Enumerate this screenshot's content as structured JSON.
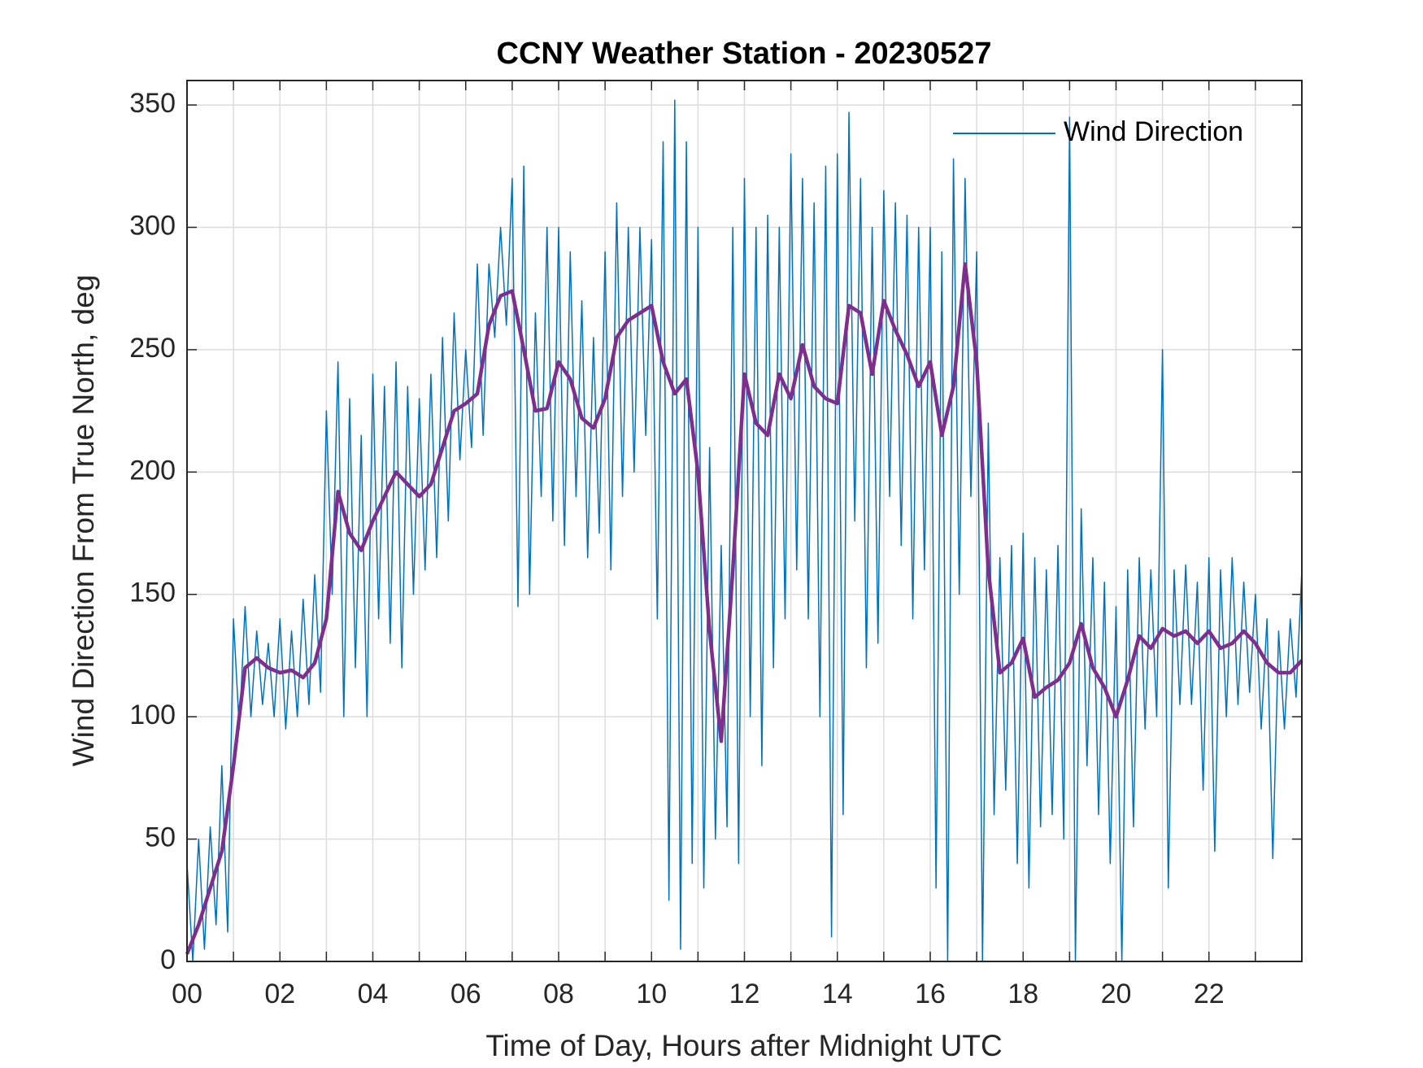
{
  "chart_data": {
    "type": "line",
    "title": "CCNY Weather Station - 20230527",
    "xlabel": "Time of Day, Hours after Midnight UTC",
    "ylabel": "Wind Direction From True North, deg",
    "xlim": [
      0,
      24
    ],
    "ylim": [
      0,
      360
    ],
    "xticks": [
      {
        "value": 0,
        "label": "00"
      },
      {
        "value": 2,
        "label": "02"
      },
      {
        "value": 4,
        "label": "04"
      },
      {
        "value": 6,
        "label": "06"
      },
      {
        "value": 8,
        "label": "08"
      },
      {
        "value": 10,
        "label": "10"
      },
      {
        "value": 12,
        "label": "12"
      },
      {
        "value": 14,
        "label": "14"
      },
      {
        "value": 16,
        "label": "16"
      },
      {
        "value": 18,
        "label": "18"
      },
      {
        "value": 20,
        "label": "20"
      },
      {
        "value": 22,
        "label": "22"
      }
    ],
    "xminorticks": [
      1,
      3,
      5,
      7,
      9,
      11,
      13,
      15,
      17,
      19,
      21,
      23
    ],
    "yticks": [
      0,
      50,
      100,
      150,
      200,
      250,
      300,
      350
    ],
    "grid": true,
    "legend": "upper right",
    "series": [
      {
        "name": "Wind Direction",
        "color": "#0072bd",
        "x": [
          0,
          0.125,
          0.25,
          0.375,
          0.5,
          0.625,
          0.75,
          0.875,
          1,
          1.125,
          1.25,
          1.375,
          1.5,
          1.625,
          1.75,
          1.875,
          2,
          2.125,
          2.25,
          2.375,
          2.5,
          2.625,
          2.75,
          2.875,
          3,
          3.125,
          3.25,
          3.375,
          3.5,
          3.625,
          3.75,
          3.875,
          4,
          4.125,
          4.25,
          4.375,
          4.5,
          4.625,
          4.75,
          4.875,
          5,
          5.125,
          5.25,
          5.375,
          5.5,
          5.625,
          5.75,
          5.875,
          6,
          6.125,
          6.25,
          6.375,
          6.5,
          6.625,
          6.75,
          6.875,
          7,
          7.125,
          7.25,
          7.375,
          7.5,
          7.625,
          7.75,
          7.875,
          8,
          8.125,
          8.25,
          8.375,
          8.5,
          8.625,
          8.75,
          8.875,
          9,
          9.125,
          9.25,
          9.375,
          9.5,
          9.625,
          9.75,
          9.875,
          10,
          10.125,
          10.25,
          10.375,
          10.5,
          10.625,
          10.75,
          10.875,
          11,
          11.125,
          11.25,
          11.375,
          11.5,
          11.625,
          11.75,
          11.875,
          12,
          12.125,
          12.25,
          12.375,
          12.5,
          12.625,
          12.75,
          12.875,
          13,
          13.125,
          13.25,
          13.375,
          13.5,
          13.625,
          13.75,
          13.875,
          14,
          14.125,
          14.25,
          14.375,
          14.5,
          14.625,
          14.75,
          14.875,
          15,
          15.125,
          15.25,
          15.375,
          15.5,
          15.625,
          15.75,
          15.875,
          16,
          16.125,
          16.25,
          16.375,
          16.5,
          16.625,
          16.75,
          16.875,
          17,
          17.125,
          17.25,
          17.375,
          17.5,
          17.625,
          17.75,
          17.875,
          18,
          18.125,
          18.25,
          18.375,
          18.5,
          18.625,
          18.75,
          18.875,
          19,
          19.125,
          19.25,
          19.375,
          19.5,
          19.625,
          19.75,
          19.875,
          20,
          20.125,
          20.25,
          20.375,
          20.5,
          20.625,
          20.75,
          20.875,
          21,
          21.125,
          21.25,
          21.375,
          21.5,
          21.625,
          21.75,
          21.875,
          22,
          22.125,
          22.25,
          22.375,
          22.5,
          22.625,
          22.75,
          22.875,
          23,
          23.125,
          23.25,
          23.375,
          23.5,
          23.625,
          23.75,
          23.875,
          24
        ],
        "values": [
          40,
          0,
          50,
          5,
          55,
          15,
          80,
          12,
          140,
          95,
          145,
          100,
          135,
          105,
          130,
          100,
          140,
          95,
          135,
          100,
          148,
          105,
          158,
          110,
          225,
          150,
          245,
          100,
          230,
          120,
          215,
          100,
          240,
          140,
          235,
          130,
          245,
          120,
          235,
          150,
          230,
          160,
          240,
          165,
          255,
          180,
          265,
          205,
          250,
          210,
          285,
          215,
          285,
          255,
          300,
          260,
          320,
          145,
          325,
          150,
          265,
          190,
          300,
          180,
          300,
          170,
          290,
          190,
          270,
          165,
          255,
          175,
          290,
          160,
          310,
          190,
          300,
          200,
          300,
          215,
          295,
          140,
          335,
          25,
          352,
          5,
          335,
          40,
          300,
          30,
          210,
          50,
          170,
          55,
          300,
          40,
          320,
          100,
          300,
          80,
          305,
          120,
          300,
          140,
          330,
          160,
          320,
          140,
          310,
          100,
          325,
          10,
          330,
          60,
          347,
          180,
          320,
          120,
          300,
          130,
          315,
          190,
          310,
          170,
          305,
          140,
          300,
          160,
          300,
          30,
          290,
          0,
          328,
          150,
          320,
          190,
          290,
          0,
          220,
          60,
          165,
          70,
          170,
          40,
          175,
          30,
          165,
          55,
          160,
          60,
          170,
          50,
          345,
          0,
          185,
          80,
          165,
          60,
          155,
          40,
          145,
          0,
          160,
          55,
          165,
          95,
          160,
          100,
          250,
          30,
          160,
          105,
          162,
          105,
          155,
          70,
          165,
          45,
          160,
          100,
          165,
          105,
          155,
          110,
          150,
          95,
          140,
          42,
          135,
          95,
          140,
          108,
          160
        ]
      },
      {
        "color": "#7e2f8e",
        "x": [
          0,
          0.25,
          0.5,
          0.75,
          1,
          1.25,
          1.5,
          1.75,
          2,
          2.25,
          2.5,
          2.75,
          3,
          3.25,
          3.5,
          3.75,
          4,
          4.25,
          4.5,
          4.75,
          5,
          5.25,
          5.5,
          5.75,
          6,
          6.25,
          6.5,
          6.75,
          7,
          7.25,
          7.5,
          7.75,
          8,
          8.25,
          8.5,
          8.75,
          9,
          9.25,
          9.5,
          9.75,
          10,
          10.25,
          10.5,
          10.75,
          11,
          11.25,
          11.5,
          11.75,
          12,
          12.25,
          12.5,
          12.75,
          13,
          13.25,
          13.5,
          13.75,
          14,
          14.25,
          14.5,
          14.75,
          15,
          15.25,
          15.5,
          15.75,
          16,
          16.25,
          16.5,
          16.75,
          17,
          17.25,
          17.5,
          17.75,
          18,
          18.25,
          18.5,
          18.75,
          19,
          19.25,
          19.5,
          19.75,
          20,
          20.25,
          20.5,
          20.75,
          21,
          21.25,
          21.5,
          21.75,
          22,
          22.25,
          22.5,
          22.75,
          23,
          23.25,
          23.5,
          23.75,
          24
        ],
        "values": [
          3,
          15,
          30,
          45,
          80,
          120,
          124,
          120,
          118,
          119,
          116,
          122,
          140,
          192,
          175,
          168,
          180,
          190,
          200,
          195,
          190,
          195,
          210,
          225,
          228,
          232,
          260,
          272,
          274,
          250,
          225,
          226,
          245,
          238,
          222,
          218,
          230,
          255,
          262,
          265,
          268,
          245,
          232,
          238,
          200,
          135,
          90,
          160,
          240,
          220,
          215,
          240,
          230,
          252,
          235,
          230,
          228,
          268,
          265,
          240,
          270,
          258,
          248,
          235,
          245,
          215,
          235,
          285,
          245,
          160,
          118,
          122,
          132,
          108,
          112,
          115,
          122,
          138,
          120,
          112,
          100,
          115,
          133,
          128,
          136,
          133,
          135,
          130,
          135,
          128,
          130,
          135,
          130,
          122,
          118,
          118,
          123
        ]
      }
    ]
  }
}
